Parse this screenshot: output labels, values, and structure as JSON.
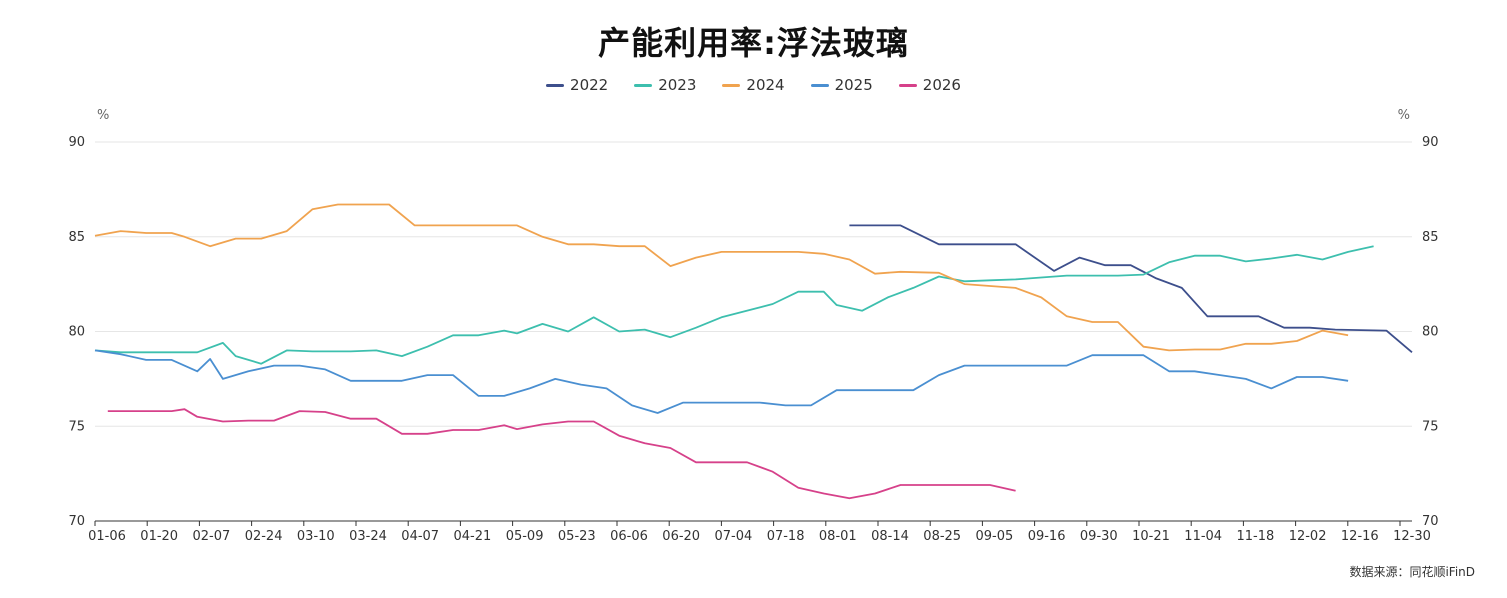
{
  "chart_data": {
    "type": "line",
    "title": "产能利用率:浮法玻璃",
    "y_unit_left": "%",
    "y_unit_right": "%",
    "ylim": [
      70,
      90
    ],
    "yticks": [
      70,
      75,
      80,
      85,
      90
    ],
    "grid": true,
    "legend_position": "top-center",
    "x_ticks": [
      "01-06",
      "01-20",
      "02-07",
      "02-24",
      "03-10",
      "03-24",
      "04-07",
      "04-21",
      "05-09",
      "05-23",
      "06-06",
      "06-20",
      "07-04",
      "07-18",
      "08-01",
      "08-14",
      "08-25",
      "09-05",
      "09-16",
      "09-30",
      "10-21",
      "11-04",
      "11-18",
      "12-02",
      "12-16",
      "12-30"
    ],
    "series": [
      {
        "name": "2022",
        "color": "#3d4f8c",
        "points": [
          [
            29.5,
            85.6
          ],
          [
            31.5,
            85.6
          ],
          [
            33,
            84.6
          ],
          [
            36,
            84.6
          ],
          [
            37.5,
            83.2
          ],
          [
            38.5,
            83.9
          ],
          [
            39.5,
            83.5
          ],
          [
            40.5,
            83.5
          ],
          [
            41.5,
            82.8
          ],
          [
            42.5,
            82.3
          ],
          [
            43.5,
            80.8
          ],
          [
            45.5,
            80.8
          ],
          [
            46.5,
            80.2
          ],
          [
            47.5,
            80.2
          ],
          [
            48.5,
            80.1
          ],
          [
            50.5,
            80.05
          ],
          [
            51.5,
            78.9
          ]
        ]
      },
      {
        "name": "2023",
        "color": "#3dbfae",
        "points": [
          [
            0,
            79.0
          ],
          [
            1,
            78.9
          ],
          [
            4,
            78.9
          ],
          [
            5,
            79.4
          ],
          [
            5.5,
            78.7
          ],
          [
            6.5,
            78.3
          ],
          [
            7.5,
            79.0
          ],
          [
            8.5,
            78.95
          ],
          [
            10,
            78.95
          ],
          [
            11,
            79.0
          ],
          [
            12,
            78.7
          ],
          [
            13,
            79.2
          ],
          [
            14,
            79.8
          ],
          [
            15,
            79.8
          ],
          [
            16,
            80.05
          ],
          [
            16.5,
            79.9
          ],
          [
            17.5,
            80.4
          ],
          [
            18.5,
            80.0
          ],
          [
            19.5,
            80.75
          ],
          [
            20.5,
            80.0
          ],
          [
            21.5,
            80.1
          ],
          [
            22.5,
            79.7
          ],
          [
            23.5,
            80.2
          ],
          [
            24.5,
            80.75
          ],
          [
            26.5,
            81.45
          ],
          [
            27.5,
            82.1
          ],
          [
            28.5,
            82.1
          ],
          [
            29,
            81.4
          ],
          [
            30,
            81.1
          ],
          [
            31,
            81.8
          ],
          [
            32,
            82.3
          ],
          [
            33,
            82.9
          ],
          [
            34,
            82.65
          ],
          [
            35,
            82.7
          ],
          [
            36,
            82.75
          ],
          [
            37,
            82.85
          ],
          [
            38,
            82.95
          ],
          [
            40,
            82.95
          ],
          [
            41,
            83.0
          ],
          [
            42,
            83.65
          ],
          [
            43,
            84.0
          ],
          [
            44,
            84.0
          ],
          [
            45,
            83.7
          ],
          [
            46,
            83.85
          ],
          [
            47,
            84.05
          ],
          [
            48,
            83.8
          ],
          [
            49,
            84.2
          ],
          [
            50,
            84.5
          ]
        ]
      },
      {
        "name": "2024",
        "color": "#f0a34f",
        "points": [
          [
            0,
            85.05
          ],
          [
            1,
            85.3
          ],
          [
            2,
            85.2
          ],
          [
            3,
            85.2
          ],
          [
            3.5,
            85.0
          ],
          [
            4.5,
            84.5
          ],
          [
            5.5,
            84.9
          ],
          [
            6.5,
            84.9
          ],
          [
            7.5,
            85.3
          ],
          [
            8.5,
            86.45
          ],
          [
            9.5,
            86.7
          ],
          [
            10.5,
            86.7
          ],
          [
            11.5,
            86.7
          ],
          [
            12.5,
            85.6
          ],
          [
            13.5,
            85.6
          ],
          [
            14.5,
            85.6
          ],
          [
            15.5,
            85.6
          ],
          [
            16.5,
            85.6
          ],
          [
            17.5,
            85.0
          ],
          [
            18.5,
            84.6
          ],
          [
            19.5,
            84.6
          ],
          [
            20.5,
            84.5
          ],
          [
            21.5,
            84.5
          ],
          [
            22.5,
            83.45
          ],
          [
            23.5,
            83.9
          ],
          [
            24.5,
            84.2
          ],
          [
            26.5,
            84.2
          ],
          [
            27.5,
            84.2
          ],
          [
            28.5,
            84.1
          ],
          [
            29.5,
            83.8
          ],
          [
            30.5,
            83.05
          ],
          [
            31.5,
            83.15
          ],
          [
            33,
            83.1
          ],
          [
            34,
            82.5
          ],
          [
            35,
            82.4
          ],
          [
            36,
            82.3
          ],
          [
            37,
            81.8
          ],
          [
            38,
            80.8
          ],
          [
            39,
            80.5
          ],
          [
            40,
            80.5
          ],
          [
            41,
            79.2
          ],
          [
            42,
            79.0
          ],
          [
            43,
            79.05
          ],
          [
            44,
            79.05
          ],
          [
            45,
            79.35
          ],
          [
            46,
            79.35
          ],
          [
            47,
            79.5
          ],
          [
            48,
            80.05
          ],
          [
            49,
            79.8
          ]
        ]
      },
      {
        "name": "2025",
        "color": "#4a8fd1",
        "points": [
          [
            0,
            79.0
          ],
          [
            1,
            78.8
          ],
          [
            2,
            78.5
          ],
          [
            3,
            78.5
          ],
          [
            4,
            77.9
          ],
          [
            4.5,
            78.55
          ],
          [
            5,
            77.5
          ],
          [
            6,
            77.9
          ],
          [
            7,
            78.2
          ],
          [
            8,
            78.2
          ],
          [
            9,
            78.0
          ],
          [
            10,
            77.4
          ],
          [
            11,
            77.4
          ],
          [
            12,
            77.4
          ],
          [
            13,
            77.7
          ],
          [
            14,
            77.7
          ],
          [
            15,
            76.6
          ],
          [
            16,
            76.6
          ],
          [
            17,
            77.0
          ],
          [
            18,
            77.5
          ],
          [
            19,
            77.2
          ],
          [
            20,
            77.0
          ],
          [
            21,
            76.1
          ],
          [
            22,
            75.7
          ],
          [
            23,
            76.25
          ],
          [
            25,
            76.25
          ],
          [
            26,
            76.25
          ],
          [
            27,
            76.1
          ],
          [
            28,
            76.1
          ],
          [
            29,
            76.9
          ],
          [
            31,
            76.9
          ],
          [
            32,
            76.9
          ],
          [
            33,
            77.7
          ],
          [
            34,
            78.2
          ],
          [
            36,
            78.2
          ],
          [
            37,
            78.2
          ],
          [
            38,
            78.2
          ],
          [
            39,
            78.75
          ],
          [
            41,
            78.75
          ],
          [
            42,
            77.9
          ],
          [
            43,
            77.9
          ],
          [
            44,
            77.7
          ],
          [
            45,
            77.5
          ],
          [
            46,
            77.0
          ],
          [
            47,
            77.6
          ],
          [
            48,
            77.6
          ],
          [
            49,
            77.4
          ]
        ]
      },
      {
        "name": "2026",
        "color": "#d6418a",
        "points": [
          [
            0.5,
            75.8
          ],
          [
            3,
            75.8
          ],
          [
            3.5,
            75.9
          ],
          [
            4,
            75.5
          ],
          [
            5,
            75.25
          ],
          [
            6,
            75.3
          ],
          [
            7,
            75.3
          ],
          [
            8,
            75.8
          ],
          [
            9,
            75.75
          ],
          [
            10,
            75.4
          ],
          [
            11,
            75.4
          ],
          [
            12,
            74.6
          ],
          [
            13,
            74.6
          ],
          [
            14,
            74.8
          ],
          [
            15,
            74.8
          ],
          [
            16,
            75.05
          ],
          [
            16.5,
            74.85
          ],
          [
            17.5,
            75.1
          ],
          [
            18.5,
            75.25
          ],
          [
            19.5,
            75.25
          ],
          [
            20.5,
            74.5
          ],
          [
            21.5,
            74.1
          ],
          [
            22.5,
            73.85
          ],
          [
            23.5,
            73.1
          ],
          [
            24.5,
            73.1
          ],
          [
            25.5,
            73.1
          ],
          [
            26.5,
            72.6
          ],
          [
            27.5,
            71.75
          ],
          [
            28.5,
            71.45
          ],
          [
            29.5,
            71.2
          ],
          [
            30.5,
            71.45
          ],
          [
            31.5,
            71.9
          ],
          [
            33,
            71.9
          ],
          [
            34,
            71.9
          ],
          [
            35,
            71.9
          ],
          [
            36,
            71.6
          ]
        ]
      }
    ],
    "source": "数据来源：同花顺iFinD"
  }
}
